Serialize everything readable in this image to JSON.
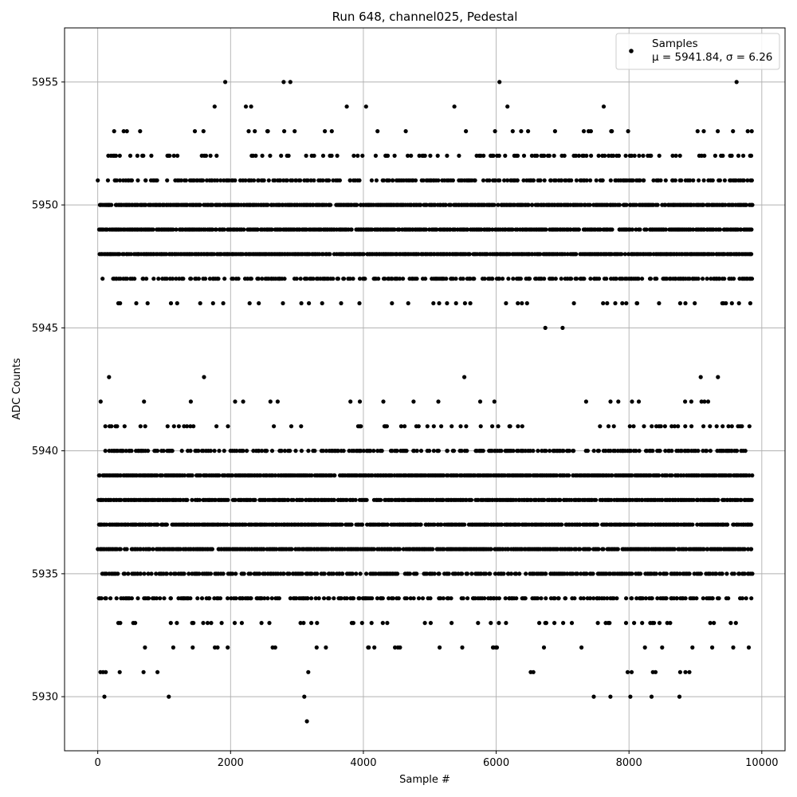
{
  "chart_data": {
    "type": "scatter",
    "title": "Run 648, channel025, Pedestal",
    "xlabel": "Sample #",
    "ylabel": "ADC Counts",
    "xlim": [
      -500,
      10350
    ],
    "ylim": [
      5927.8,
      5957.2
    ],
    "xticks": [
      0,
      2000,
      4000,
      6000,
      8000,
      10000
    ],
    "xtick_labels": [
      "0",
      "2000",
      "4000",
      "6000",
      "8000",
      "10000"
    ],
    "yticks": [
      5930,
      5935,
      5940,
      5945,
      5950,
      5955
    ],
    "ytick_labels": [
      "5930",
      "5935",
      "5940",
      "5945",
      "5950",
      "5955"
    ],
    "grid": true,
    "legend_position": "upper right",
    "marker_color": "#000000",
    "legend": {
      "label": "Samples",
      "stats": "μ = 5941.84, σ = 6.26"
    },
    "mean": 5941.84,
    "sigma": 6.26,
    "x_range": [
      0,
      9850
    ],
    "series": [
      {
        "name": "Samples",
        "bands": [
          {
            "y": 5948,
            "density": 0.85
          },
          {
            "y": 5949,
            "density": 0.85
          },
          {
            "y": 5950,
            "density": 0.85
          },
          {
            "y": 5947,
            "density": 0.5
          },
          {
            "y": 5951,
            "density": 0.5
          },
          {
            "y": 5952,
            "density": 0.25
          },
          {
            "y": 5946,
            "density": 0.08
          },
          {
            "y": 5953,
            "density": 0.05
          },
          {
            "y": 5936,
            "density": 0.85
          },
          {
            "y": 5937,
            "density": 0.85
          },
          {
            "y": 5938,
            "density": 0.85
          },
          {
            "y": 5939,
            "density": 0.85
          },
          {
            "y": 5935,
            "density": 0.6
          },
          {
            "y": 5940,
            "density": 0.5
          },
          {
            "y": 5934,
            "density": 0.45
          },
          {
            "y": 5941,
            "density": 0.15
          },
          {
            "y": 5933,
            "density": 0.12
          },
          {
            "y": 5932,
            "density": 0.04
          },
          {
            "y": 5942,
            "density": 0.03
          }
        ],
        "points": [
          [
            1920,
            5955
          ],
          [
            2800,
            5955
          ],
          [
            2900,
            5955
          ],
          [
            6050,
            5955
          ],
          [
            9620,
            5955
          ],
          [
            1760,
            5954
          ],
          [
            2230,
            5954
          ],
          [
            2310,
            5954
          ],
          [
            3750,
            5954
          ],
          [
            4040,
            5954
          ],
          [
            5370,
            5954
          ],
          [
            6170,
            5954
          ],
          [
            7620,
            5954
          ],
          [
            6740,
            5945
          ],
          [
            7000,
            5945
          ],
          [
            170,
            5943
          ],
          [
            1600,
            5943
          ],
          [
            5520,
            5943
          ],
          [
            9080,
            5943
          ],
          [
            9340,
            5943
          ],
          [
            100,
            5930
          ],
          [
            1070,
            5930
          ],
          [
            3110,
            5930
          ],
          [
            7470,
            5930
          ],
          [
            7720,
            5930
          ],
          [
            8020,
            5930
          ],
          [
            8340,
            5930
          ],
          [
            8760,
            5930
          ],
          [
            3150,
            5929
          ],
          [
            40,
            5931
          ],
          [
            80,
            5931
          ],
          [
            120,
            5931
          ],
          [
            330,
            5931
          ],
          [
            690,
            5931
          ],
          [
            900,
            5931
          ],
          [
            3170,
            5931
          ],
          [
            6520,
            5931
          ],
          [
            6560,
            5931
          ],
          [
            7980,
            5931
          ],
          [
            8040,
            5931
          ],
          [
            8360,
            5931
          ],
          [
            8400,
            5931
          ],
          [
            8770,
            5931
          ],
          [
            8850,
            5931
          ],
          [
            8910,
            5931
          ]
        ]
      }
    ]
  }
}
